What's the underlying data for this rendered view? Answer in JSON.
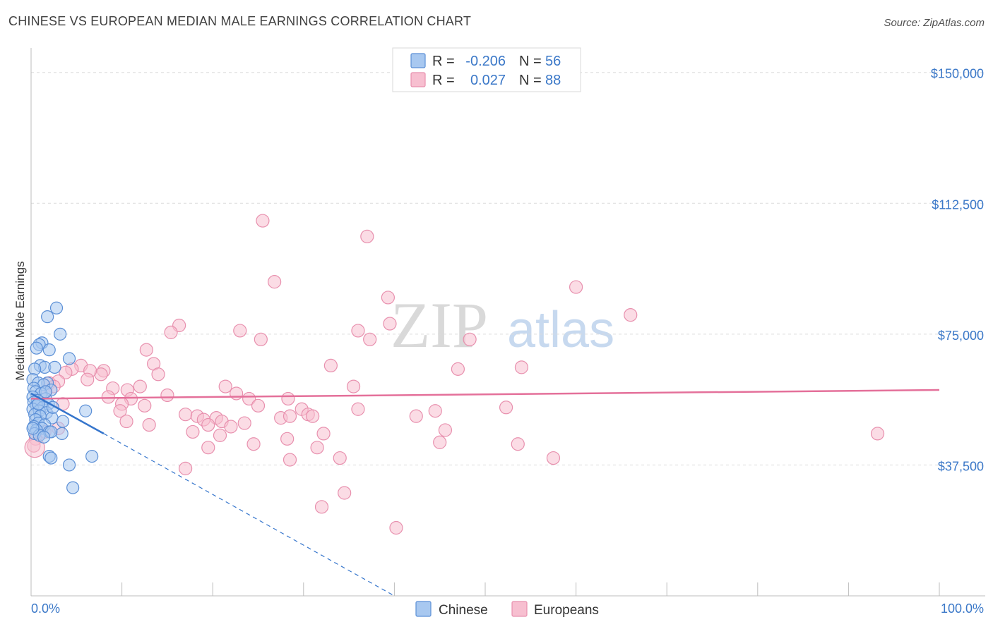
{
  "title": "CHINESE VS EUROPEAN MEDIAN MALE EARNINGS CORRELATION CHART",
  "source": "Source: ZipAtlas.com",
  "watermark": {
    "zip": "ZIP",
    "atlas": "atlas"
  },
  "colors": {
    "chinese_fill": "#a8c8f0",
    "chinese_stroke": "#5b8fd6",
    "chinese_line": "#3575cc",
    "europeans_fill": "#f7bfd0",
    "europeans_stroke": "#e890ae",
    "europeans_line": "#e4709a",
    "accent_text": "#3b78c8"
  },
  "legend": {
    "rows": [
      {
        "series": "Chinese",
        "r_label": "R =",
        "r_value": "-0.206",
        "n_label": "N =",
        "n_value": "56"
      },
      {
        "series": "Europeans",
        "r_label": "R =",
        "r_value": "0.027",
        "n_label": "N =",
        "n_value": "88"
      }
    ]
  },
  "chart_data": {
    "type": "scatter",
    "title": "CHINESE VS EUROPEAN MEDIAN MALE EARNINGS CORRELATION CHART",
    "xlabel": "",
    "ylabel": "Median Male Earnings",
    "xlim": [
      0,
      100
    ],
    "ylim": [
      0,
      155000
    ],
    "x_tick_labels": [
      "0.0%",
      "100.0%"
    ],
    "y_ticks": [
      37500,
      75000,
      112500,
      150000
    ],
    "y_tick_labels": [
      "$37,500",
      "$75,000",
      "$112,500",
      "$150,000"
    ],
    "series": [
      {
        "name": "Chinese",
        "r": -0.206,
        "n": 56,
        "trend": {
          "x0": 0,
          "y0": 58000,
          "x1": 8,
          "y1": 46500,
          "dashed_to_x": 40,
          "dashed_to_y": 0
        },
        "points": [
          [
            1.8,
            80000
          ],
          [
            2.8,
            82500
          ],
          [
            1.2,
            72500
          ],
          [
            0.9,
            72000
          ],
          [
            3.2,
            75000
          ],
          [
            2.0,
            70500
          ],
          [
            0.6,
            71000
          ],
          [
            4.2,
            68000
          ],
          [
            1.0,
            66000
          ],
          [
            1.5,
            65500
          ],
          [
            0.4,
            65000
          ],
          [
            2.6,
            65500
          ],
          [
            0.2,
            62000
          ],
          [
            1.8,
            61000
          ],
          [
            0.8,
            61000
          ],
          [
            1.4,
            60500
          ],
          [
            0.3,
            59500
          ],
          [
            2.2,
            59000
          ],
          [
            0.5,
            58500
          ],
          [
            1.1,
            58000
          ],
          [
            0.2,
            57000
          ],
          [
            1.6,
            56500
          ],
          [
            0.7,
            56000
          ],
          [
            0.3,
            55500
          ],
          [
            1.9,
            55000
          ],
          [
            0.6,
            54500
          ],
          [
            1.3,
            54000
          ],
          [
            0.2,
            53500
          ],
          [
            0.9,
            53000
          ],
          [
            1.7,
            52500
          ],
          [
            0.4,
            52000
          ],
          [
            1.0,
            51500
          ],
          [
            2.3,
            51000
          ],
          [
            0.5,
            50500
          ],
          [
            3.5,
            50000
          ],
          [
            0.8,
            49500
          ],
          [
            1.5,
            49000
          ],
          [
            0.3,
            48500
          ],
          [
            1.2,
            48000
          ],
          [
            0.6,
            47500
          ],
          [
            2.0,
            47000
          ],
          [
            0.4,
            46500
          ],
          [
            3.4,
            46500
          ],
          [
            2.2,
            47000
          ],
          [
            0.9,
            46000
          ],
          [
            1.4,
            45500
          ],
          [
            6.0,
            53000
          ],
          [
            2.0,
            40000
          ],
          [
            2.2,
            39500
          ],
          [
            6.7,
            40000
          ],
          [
            4.2,
            37500
          ],
          [
            4.6,
            31000
          ],
          [
            0.8,
            55000
          ],
          [
            1.6,
            58500
          ],
          [
            2.4,
            54000
          ],
          [
            0.2,
            48000
          ]
        ]
      },
      {
        "name": "Europeans",
        "r": 0.027,
        "n": 88,
        "trend": {
          "x0": 0,
          "y0": 56500,
          "x1": 100,
          "y1": 59000
        },
        "points": [
          [
            25.5,
            107500
          ],
          [
            37.0,
            103000
          ],
          [
            26.8,
            90000
          ],
          [
            60.0,
            88500
          ],
          [
            39.3,
            85500
          ],
          [
            66.0,
            80500
          ],
          [
            39.5,
            78000
          ],
          [
            16.3,
            77500
          ],
          [
            15.4,
            75500
          ],
          [
            23.0,
            76000
          ],
          [
            36.0,
            76000
          ],
          [
            25.3,
            73500
          ],
          [
            37.3,
            73500
          ],
          [
            48.3,
            73500
          ],
          [
            12.7,
            70500
          ],
          [
            13.5,
            66500
          ],
          [
            33.0,
            66000
          ],
          [
            47.0,
            65000
          ],
          [
            54.0,
            65500
          ],
          [
            5.5,
            66000
          ],
          [
            8.0,
            64500
          ],
          [
            14.0,
            63500
          ],
          [
            7.7,
            63500
          ],
          [
            6.5,
            64500
          ],
          [
            4.5,
            65000
          ],
          [
            3.8,
            64000
          ],
          [
            2.0,
            61000
          ],
          [
            3.0,
            61500
          ],
          [
            2.5,
            60000
          ],
          [
            6.2,
            62000
          ],
          [
            10.6,
            59000
          ],
          [
            12.0,
            60000
          ],
          [
            21.4,
            60000
          ],
          [
            35.5,
            60000
          ],
          [
            1.6,
            58500
          ],
          [
            9.0,
            59500
          ],
          [
            8.5,
            57000
          ],
          [
            15.0,
            57500
          ],
          [
            11.0,
            56500
          ],
          [
            22.6,
            58000
          ],
          [
            24.0,
            56500
          ],
          [
            28.3,
            56500
          ],
          [
            10.0,
            55000
          ],
          [
            12.5,
            54500
          ],
          [
            25.0,
            54500
          ],
          [
            36.0,
            53500
          ],
          [
            29.8,
            53500
          ],
          [
            17.0,
            52000
          ],
          [
            9.8,
            53000
          ],
          [
            18.3,
            51500
          ],
          [
            19.0,
            50500
          ],
          [
            20.4,
            51000
          ],
          [
            21.0,
            50000
          ],
          [
            27.5,
            51000
          ],
          [
            28.5,
            51500
          ],
          [
            30.5,
            52000
          ],
          [
            31.0,
            51500
          ],
          [
            42.4,
            51500
          ],
          [
            44.5,
            53000
          ],
          [
            52.3,
            54000
          ],
          [
            10.5,
            50000
          ],
          [
            13.0,
            49000
          ],
          [
            19.5,
            49000
          ],
          [
            22.0,
            48500
          ],
          [
            23.5,
            49500
          ],
          [
            17.8,
            47000
          ],
          [
            20.8,
            46000
          ],
          [
            32.2,
            46500
          ],
          [
            28.2,
            45000
          ],
          [
            24.5,
            43500
          ],
          [
            3.0,
            48000
          ],
          [
            1.5,
            47000
          ],
          [
            0.5,
            45000
          ],
          [
            0.3,
            43000
          ],
          [
            45.6,
            47500
          ],
          [
            45.0,
            44000
          ],
          [
            53.6,
            43500
          ],
          [
            93.2,
            46500
          ],
          [
            19.5,
            42500
          ],
          [
            31.5,
            42500
          ],
          [
            57.5,
            39500
          ],
          [
            34.0,
            39500
          ],
          [
            28.5,
            39000
          ],
          [
            17.0,
            36500
          ],
          [
            34.5,
            29500
          ],
          [
            32.0,
            25500
          ],
          [
            40.2,
            19500
          ],
          [
            3.5,
            55000
          ]
        ]
      }
    ]
  },
  "bottom_legend": [
    {
      "series": "Chinese",
      "label": "Chinese"
    },
    {
      "series": "Europeans",
      "label": "Europeans"
    }
  ]
}
